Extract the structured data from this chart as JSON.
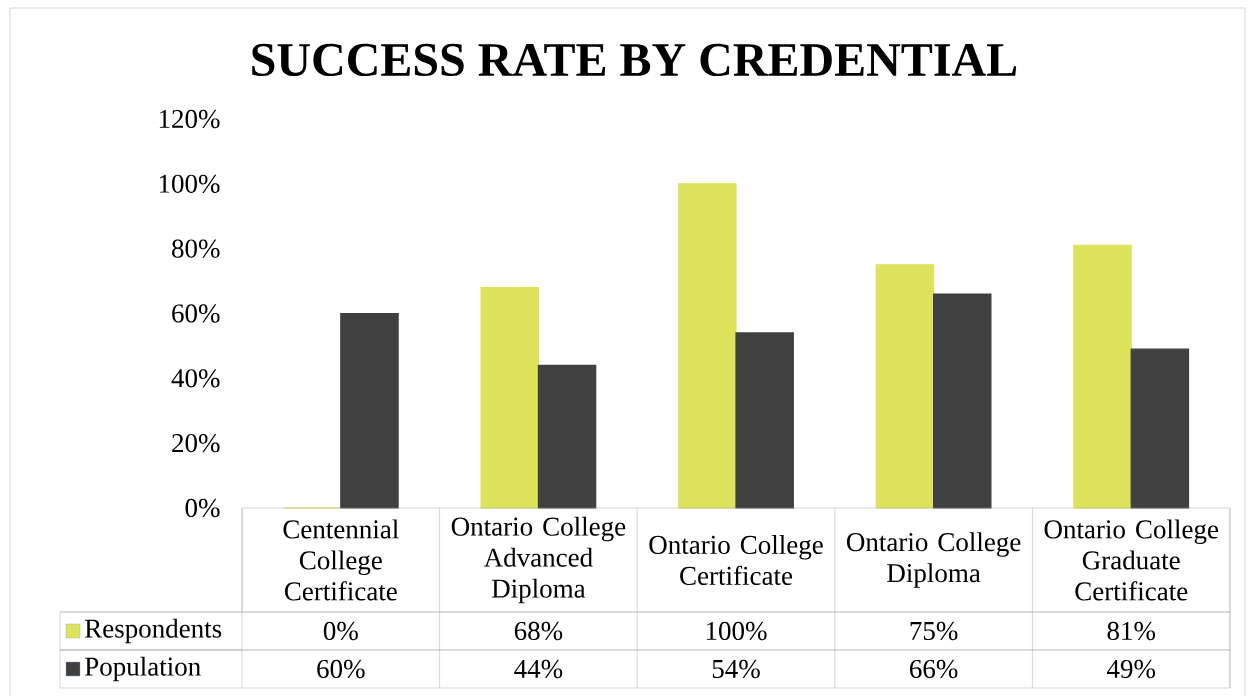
{
  "chart_data": {
    "type": "bar",
    "title": "SUCCESS RATE BY CREDENTIAL",
    "categories": [
      "Centennial College Certificate",
      "Ontario College Advanced Diploma",
      "Ontario College Certificate",
      "Ontario College Diploma",
      "Ontario College Graduate Certificate"
    ],
    "series": [
      {
        "name": "Respondents",
        "color": "#dde35b",
        "values": [
          0,
          68,
          100,
          75,
          81
        ],
        "value_labels": [
          "0%",
          "68%",
          "100%",
          "75%",
          "81%"
        ]
      },
      {
        "name": "Population",
        "color": "#404040",
        "values": [
          60,
          44,
          54,
          66,
          49
        ],
        "value_labels": [
          "60%",
          "44%",
          "54%",
          "66%",
          "49%"
        ]
      }
    ],
    "ylim": [
      0,
      120
    ],
    "yticks": [
      {
        "value": 0,
        "label": "0%"
      },
      {
        "value": 20,
        "label": "20%"
      },
      {
        "value": 40,
        "label": "40%"
      },
      {
        "value": 60,
        "label": "60%"
      },
      {
        "value": 80,
        "label": "80%"
      },
      {
        "value": 100,
        "label": "100%"
      },
      {
        "value": 120,
        "label": "120%"
      }
    ],
    "legend": "bottom"
  }
}
